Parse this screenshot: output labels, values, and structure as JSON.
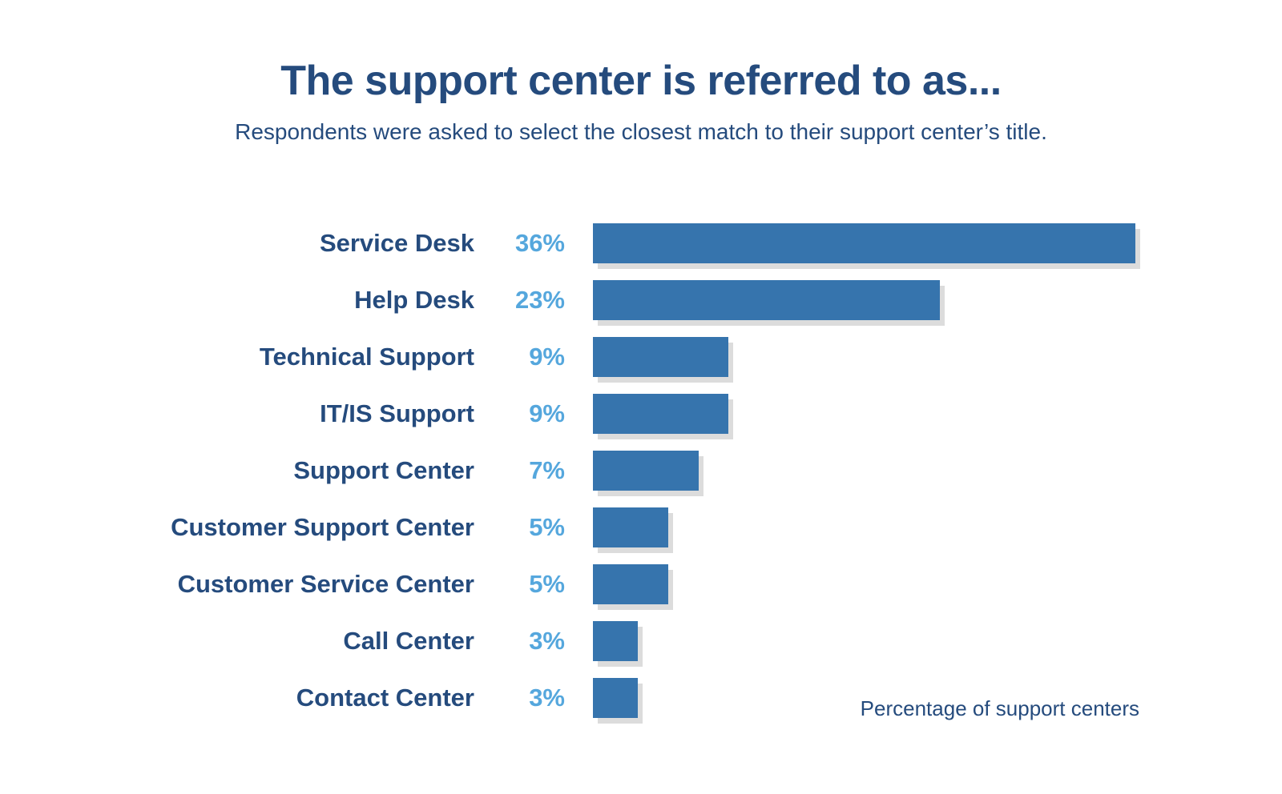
{
  "page": {
    "background": "#ffffff"
  },
  "header": {
    "title": "The support center is referred to as...",
    "subtitle": "Respondents were asked to select the closest match to their support center’s title."
  },
  "chart_data": {
    "type": "bar",
    "orientation": "horizontal",
    "title": "The support center is referred to as...",
    "subtitle": "Respondents were asked to select the closest match to their support center’s title.",
    "categories": [
      "Service Desk",
      "Help Desk",
      "Technical Support",
      "IT/IS Support",
      "Support Center",
      "Customer Support Center",
      "Customer Service Center",
      "Call Center",
      "Contact Center"
    ],
    "values": [
      36,
      23,
      9,
      9,
      7,
      5,
      5,
      3,
      3
    ],
    "value_labels": [
      "36%",
      "23%",
      "9%",
      "9%",
      "7%",
      "5%",
      "5%",
      "3%",
      "3%"
    ],
    "xlabel": "Percentage of support centers",
    "ylabel": "",
    "xlim": [
      0,
      36
    ],
    "grid": false,
    "legend_position": "none",
    "bar_color": "#3674ad",
    "bar_shadow_color": "#dcdcdc",
    "category_label_color": "#254b7d",
    "value_label_color": "#55a7dd"
  },
  "footer": {
    "axis_note": "Percentage of support centers"
  }
}
